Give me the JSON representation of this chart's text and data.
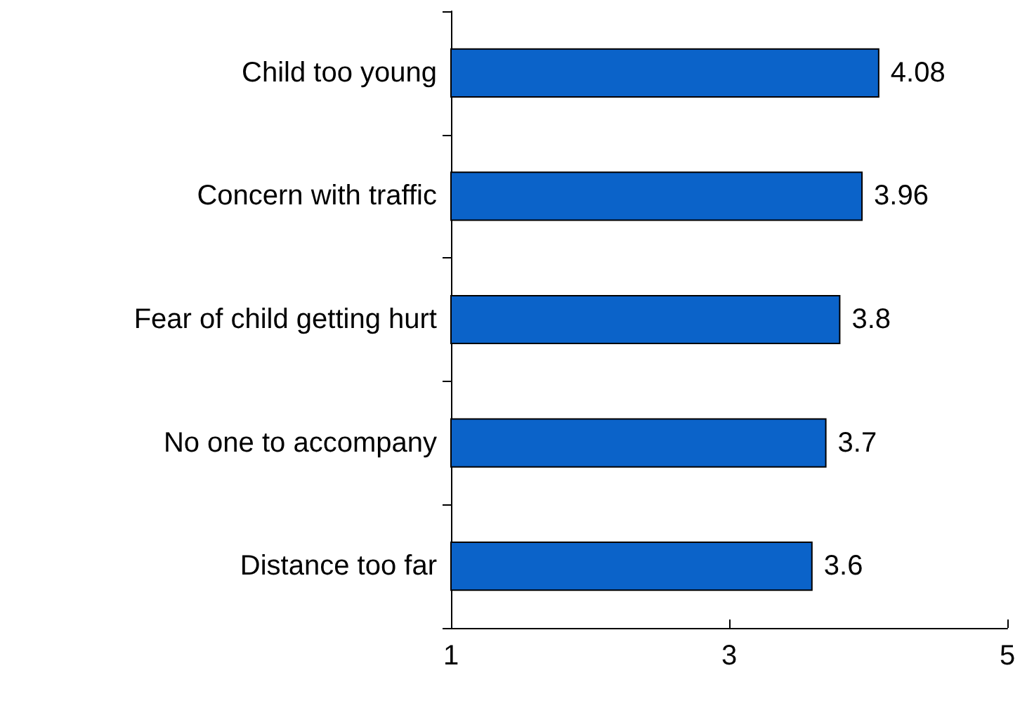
{
  "chart_data": {
    "type": "bar",
    "orientation": "horizontal",
    "categories": [
      "Child too young",
      "Concern with traffic",
      "Fear of child getting hurt",
      "No one to accompany",
      "Distance too far"
    ],
    "values": [
      4.08,
      3.96,
      3.8,
      3.7,
      3.6
    ],
    "color": "#0b63c9",
    "xlim": [
      1,
      5
    ],
    "xticks": [
      1,
      3,
      5
    ],
    "grid": false,
    "data_labels": true
  }
}
